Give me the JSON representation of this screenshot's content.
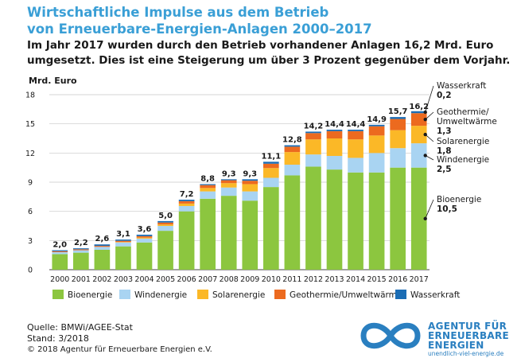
{
  "title": {
    "line1": "Wirtschaftliche Impulse aus dem Betrieb",
    "line2": "von Erneuerbare-Energien-Anlagen 2000–2017"
  },
  "subtitle": {
    "line1": "Im Jahr 2017 wurden durch den Betrieb vorhandener Anlagen 16,2 Mrd. Euro",
    "line2": "umgesetzt. Dies ist eine Steigerung um über 3 Prozent gegenüber dem Vorjahr."
  },
  "footer": {
    "source": "Quelle: BMWi/AGEE-Stat",
    "status": "Stand: 3/2018",
    "copyright": "© 2018 Agentur für Erneuerbare Energien e.V."
  },
  "logo": {
    "line1": "AGENTUR FÜR",
    "line2": "ERNEUERBARE",
    "line3": "ENERGIEN",
    "url": "unendlich-viel-energie.de"
  },
  "colors": {
    "title": "#3a9fd6",
    "bio": "#8cc63f",
    "wind": "#a9d4f2",
    "solar": "#fbb827",
    "geo": "#ec6a1f",
    "hydro": "#1b6db5",
    "logo": "#2a7fc0"
  },
  "chart_data": {
    "type": "bar",
    "stacked": true,
    "ylabel": "Mrd. Euro",
    "ylim": [
      0,
      18
    ],
    "yticks": [
      0,
      3,
      6,
      9,
      12,
      15,
      18
    ],
    "categories": [
      "2000",
      "2001",
      "2002",
      "2003",
      "2004",
      "2005",
      "2006",
      "2007",
      "2008",
      "2009",
      "2010",
      "2011",
      "2012",
      "2013",
      "2014",
      "2015",
      "2016",
      "2017"
    ],
    "totals": [
      2.0,
      2.2,
      2.6,
      3.1,
      3.6,
      5.0,
      7.2,
      8.8,
      9.3,
      9.3,
      11.1,
      12.8,
      14.2,
      14.4,
      14.4,
      14.9,
      15.7,
      16.2
    ],
    "total_labels": [
      "2,0",
      "2,2",
      "2,6",
      "3,1",
      "3,6",
      "5,0",
      "7,2",
      "8,8",
      "9,3",
      "9,3",
      "11,1",
      "12,8",
      "14,2",
      "14,4",
      "14,4",
      "14,9",
      "15,7",
      "16,2"
    ],
    "series": [
      {
        "name": "Bioenergie",
        "key": "bio",
        "values": [
          1.6,
          1.75,
          2.05,
          2.4,
          2.8,
          4.0,
          6.0,
          7.3,
          7.6,
          7.1,
          8.5,
          9.7,
          10.6,
          10.3,
          10.0,
          10.0,
          10.5,
          10.5
        ]
      },
      {
        "name": "Windenergie",
        "key": "wind",
        "values": [
          0.2,
          0.25,
          0.3,
          0.4,
          0.4,
          0.5,
          0.55,
          0.75,
          0.85,
          0.95,
          0.95,
          1.1,
          1.25,
          1.4,
          1.5,
          2.0,
          2.0,
          2.5
        ]
      },
      {
        "name": "Solarenergie",
        "key": "solar",
        "values": [
          0.0,
          0.0,
          0.0,
          0.05,
          0.1,
          0.15,
          0.25,
          0.35,
          0.45,
          0.75,
          1.0,
          1.3,
          1.55,
          1.8,
          1.9,
          1.8,
          1.85,
          1.8
        ]
      },
      {
        "name": "Geothermie/Umweltwärme",
        "key": "geo",
        "values": [
          0.1,
          0.1,
          0.1,
          0.12,
          0.15,
          0.2,
          0.25,
          0.3,
          0.3,
          0.35,
          0.45,
          0.55,
          0.65,
          0.75,
          0.85,
          0.95,
          1.15,
          1.3
        ]
      },
      {
        "name": "Wasserkraft",
        "key": "hydro",
        "values": [
          0.1,
          0.1,
          0.15,
          0.13,
          0.15,
          0.15,
          0.15,
          0.1,
          0.1,
          0.15,
          0.2,
          0.15,
          0.15,
          0.15,
          0.15,
          0.15,
          0.2,
          0.2
        ]
      }
    ],
    "annotations_2017": [
      {
        "key": "hydro",
        "name": "Wasserkraft",
        "value": "0,2"
      },
      {
        "key": "geo",
        "name_line1": "Geothermie/",
        "name_line2": "Umweltwärme",
        "value": "1,3"
      },
      {
        "key": "solar",
        "name": "Solarenergie",
        "value": "1,8"
      },
      {
        "key": "wind",
        "name": "Windenergie",
        "value": "2,5"
      },
      {
        "key": "bio",
        "name": "Bioenergie",
        "value": "10,5"
      }
    ],
    "legend": [
      "Bioenergie",
      "Windenergie",
      "Solarenergie",
      "Geothermie/Umweltwärme",
      "Wasserkraft"
    ]
  }
}
